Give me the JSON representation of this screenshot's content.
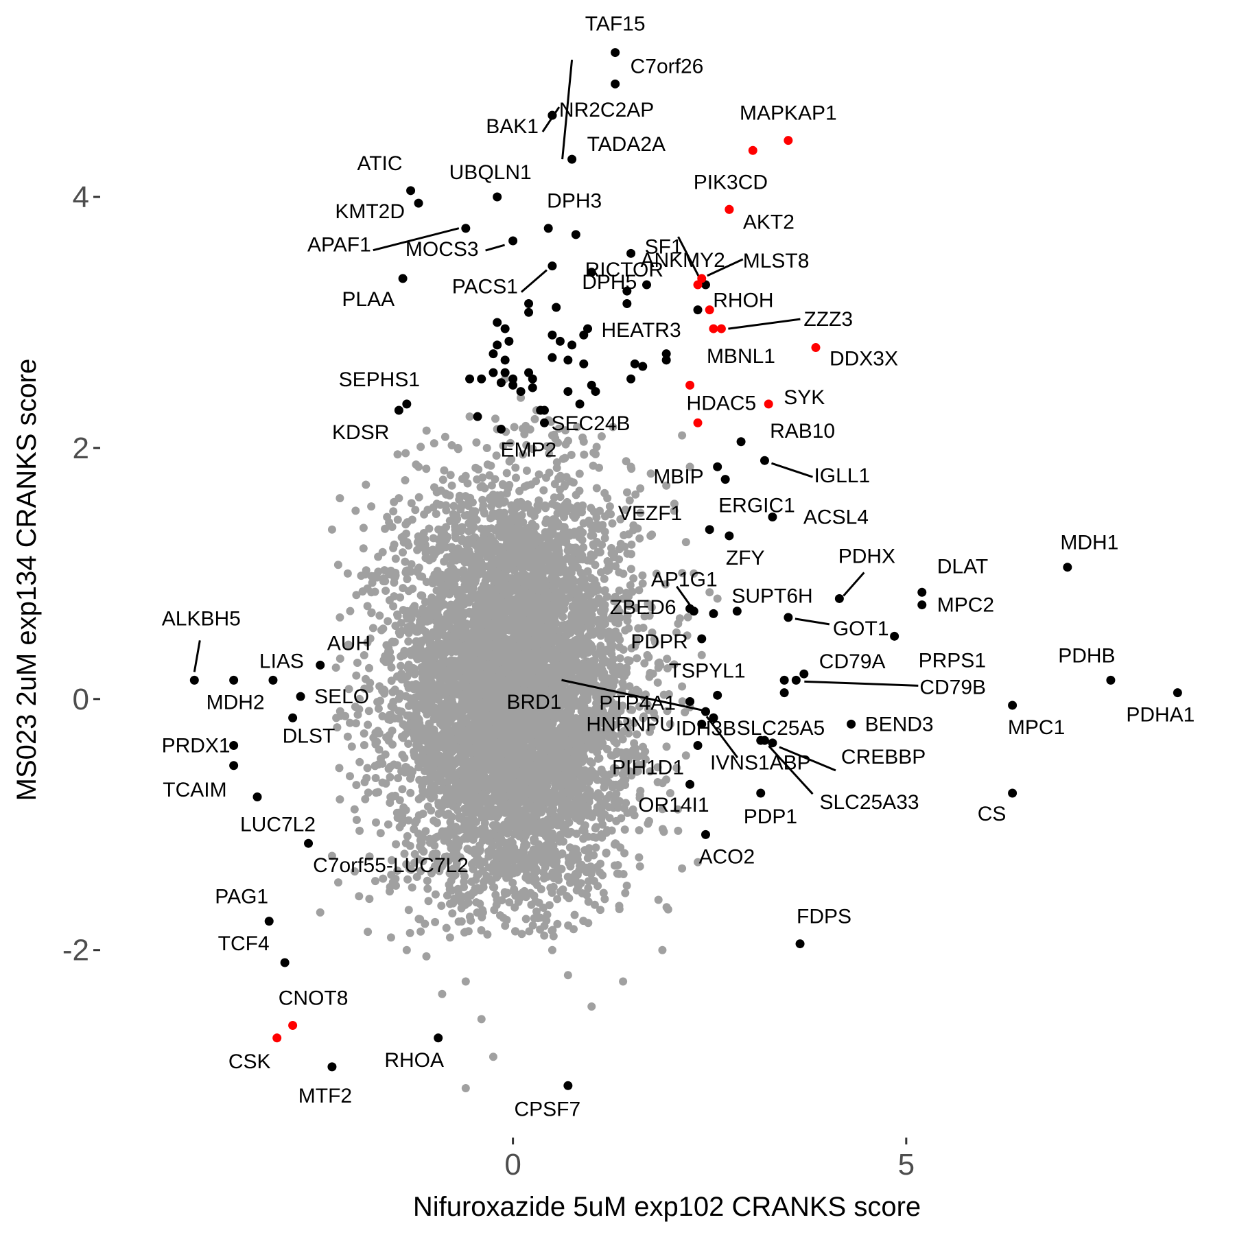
{
  "colors": {
    "background": "#ffffff",
    "highlight": "#ff0000",
    "hit": "#000000",
    "bulk": "#a0a0a0",
    "leader": "#000000"
  },
  "chart_data": {
    "type": "scatter",
    "xlabel": "Nifuroxazide 5uM exp102 CRANKS score",
    "ylabel": "MS023 2uM exp134 CRANKS score",
    "xlim": [
      -5.3,
      8.7
    ],
    "ylim": [
      -3.45,
      5.35
    ],
    "xticks": [
      0,
      5
    ],
    "yticks": [
      -2,
      0,
      2,
      4
    ],
    "grid": false,
    "legend": "none",
    "bulk_series": {
      "name": "",
      "points": [
        [
          2.15,
          2.1
        ],
        [
          2.25,
          1.85
        ],
        [
          1.95,
          1.7
        ],
        [
          2.05,
          1.5
        ],
        [
          2.2,
          1.25
        ],
        [
          2.3,
          1.0
        ],
        [
          2.5,
          0.85
        ],
        [
          2.1,
          0.6
        ],
        [
          2.4,
          0.35
        ],
        [
          2.15,
          0.1
        ],
        [
          2.0,
          -0.2
        ],
        [
          2.2,
          -0.45
        ],
        [
          2.0,
          -0.75
        ],
        [
          2.1,
          -1.05
        ],
        [
          2.15,
          -1.35
        ],
        [
          -2.2,
          1.6
        ],
        [
          -2.0,
          1.5
        ],
        [
          -2.3,
          1.35
        ],
        [
          -1.9,
          1.2
        ],
        [
          -2.1,
          1.0
        ],
        [
          -1.8,
          0.85
        ],
        [
          -2.2,
          0.65
        ],
        [
          -1.85,
          0.45
        ],
        [
          -2.25,
          0.25
        ],
        [
          -1.95,
          0.0
        ],
        [
          -2.1,
          -0.3
        ],
        [
          -1.85,
          -0.55
        ],
        [
          -2.2,
          -0.8
        ],
        [
          -1.95,
          -1.05
        ],
        [
          -2.3,
          -1.25
        ],
        [
          -1.75,
          -1.45
        ],
        [
          -2.45,
          -1.7
        ],
        [
          -0.8,
          -1.9
        ],
        [
          -0.6,
          -2.25
        ],
        [
          -0.4,
          -2.55
        ],
        [
          -0.25,
          -2.85
        ],
        [
          -0.6,
          -3.1
        ],
        [
          1.9,
          -2.0
        ],
        [
          1.4,
          -2.25
        ],
        [
          1.0,
          -2.45
        ],
        [
          -1.1,
          -2.05
        ],
        [
          -0.9,
          -2.35
        ],
        [
          0.7,
          -2.2
        ],
        [
          0.5,
          -2.0
        ],
        [
          1.2,
          1.6
        ],
        [
          1.5,
          1.85
        ],
        [
          0.9,
          2.05
        ],
        [
          0.5,
          2.1
        ],
        [
          -0.2,
          2.15
        ],
        [
          -0.7,
          2.0
        ],
        [
          -1.2,
          1.85
        ],
        [
          -1.45,
          1.6
        ],
        [
          1.75,
          1.3
        ],
        [
          -1.6,
          1.45
        ],
        [
          0.1,
          2.4
        ],
        [
          -0.1,
          2.55
        ],
        [
          0.3,
          2.3
        ],
        [
          -0.55,
          2.25
        ],
        [
          1.05,
          1.95
        ],
        [
          2.6,
          0.8
        ],
        [
          2.35,
          -1.3
        ],
        [
          1.85,
          -1.6
        ],
        [
          -1.55,
          -1.9
        ],
        [
          -1.35,
          -2.0
        ]
      ]
    },
    "hit_series": {
      "name": "",
      "points": [
        {
          "label": "TAF15",
          "x": 1.3,
          "y": 5.15
        },
        {
          "label": "C7orf26",
          "x": 1.3,
          "y": 4.9
        },
        {
          "label": "NR2C2AP",
          "x": 0.5,
          "y": 4.65
        },
        {
          "label": "BAK1",
          "x": 0.5,
          "y": 4.65
        },
        {
          "label": "TADA2A",
          "x": 0.75,
          "y": 4.3
        },
        {
          "label": "ATIC",
          "x": -1.3,
          "y": 4.05
        },
        {
          "label": "KMT2D",
          "x": -1.2,
          "y": 3.95
        },
        {
          "label": "UBQLN1",
          "x": -0.2,
          "y": 4.0
        },
        {
          "label": "DPH3",
          "x": 0.45,
          "y": 3.75
        },
        {
          "label": "",
          "x": 0.8,
          "y": 3.7
        },
        {
          "label": "APAF1",
          "x": -0.6,
          "y": 3.75
        },
        {
          "label": "MOCS3",
          "x": 0.0,
          "y": 3.65
        },
        {
          "label": "SF1",
          "x": 1.5,
          "y": 3.55
        },
        {
          "label": "PLAA",
          "x": -1.4,
          "y": 3.35
        },
        {
          "label": "PACS1",
          "x": 0.5,
          "y": 3.45
        },
        {
          "label": "DPH5",
          "x": 1.0,
          "y": 3.4
        },
        {
          "label": "ANKMY2",
          "x": 2.45,
          "y": 3.3
        },
        {
          "label": "",
          "x": 1.7,
          "y": 3.3
        },
        {
          "label": "",
          "x": 1.45,
          "y": 3.25
        },
        {
          "label": "",
          "x": 1.45,
          "y": 3.15
        },
        {
          "label": "",
          "x": 0.2,
          "y": 3.15
        },
        {
          "label": "",
          "x": 0.2,
          "y": 3.08
        },
        {
          "label": "",
          "x": 0.55,
          "y": 3.12
        },
        {
          "label": "",
          "x": 2.35,
          "y": 3.1
        },
        {
          "label": "HEATR3",
          "x": 0.95,
          "y": 2.95
        },
        {
          "label": "",
          "x": -0.2,
          "y": 3.0
        },
        {
          "label": "",
          "x": -0.1,
          "y": 2.95
        },
        {
          "label": "",
          "x": 0.5,
          "y": 2.9
        },
        {
          "label": "",
          "x": 0.6,
          "y": 2.85
        },
        {
          "label": "",
          "x": 0.75,
          "y": 2.82
        },
        {
          "label": "",
          "x": 0.9,
          "y": 2.9
        },
        {
          "label": "",
          "x": -0.2,
          "y": 2.82
        },
        {
          "label": "",
          "x": -0.05,
          "y": 2.85
        },
        {
          "label": "",
          "x": -0.25,
          "y": 2.75
        },
        {
          "label": "",
          "x": -0.1,
          "y": 2.7
        },
        {
          "label": "",
          "x": 0.5,
          "y": 2.72
        },
        {
          "label": "",
          "x": 0.7,
          "y": 2.7
        },
        {
          "label": "",
          "x": 0.9,
          "y": 2.67
        },
        {
          "label": "",
          "x": 1.95,
          "y": 2.75
        },
        {
          "label": "",
          "x": 1.95,
          "y": 2.7
        },
        {
          "label": "",
          "x": 1.55,
          "y": 2.67
        },
        {
          "label": "",
          "x": 1.65,
          "y": 2.65
        },
        {
          "label": "",
          "x": -0.25,
          "y": 2.6
        },
        {
          "label": "",
          "x": -0.4,
          "y": 2.55
        },
        {
          "label": "",
          "x": 0.0,
          "y": 2.55
        },
        {
          "label": "",
          "x": 0.2,
          "y": 2.6
        },
        {
          "label": "",
          "x": 0.25,
          "y": 2.55
        },
        {
          "label": "",
          "x": -0.55,
          "y": 2.55
        },
        {
          "label": "",
          "x": -0.1,
          "y": 2.6
        },
        {
          "label": "",
          "x": 0.0,
          "y": 2.5
        },
        {
          "label": "",
          "x": 0.1,
          "y": 2.45
        },
        {
          "label": "",
          "x": -0.15,
          "y": 2.52
        },
        {
          "label": "",
          "x": 0.25,
          "y": 2.48
        },
        {
          "label": "",
          "x": 0.7,
          "y": 2.45
        },
        {
          "label": "",
          "x": 1.0,
          "y": 2.5
        },
        {
          "label": "",
          "x": 1.05,
          "y": 2.45
        },
        {
          "label": "",
          "x": 1.5,
          "y": 2.55
        },
        {
          "label": "",
          "x": 0.35,
          "y": 2.3
        },
        {
          "label": "",
          "x": 0.4,
          "y": 2.2
        },
        {
          "label": "",
          "x": 0.85,
          "y": 2.35
        },
        {
          "label": "",
          "x": 0.4,
          "y": 2.3
        },
        {
          "label": "SEPHS1",
          "x": -1.35,
          "y": 2.35
        },
        {
          "label": "KDSR",
          "x": -1.45,
          "y": 2.3
        },
        {
          "label": "SEC24B",
          "x": -0.45,
          "y": 2.25
        },
        {
          "label": "EMP2",
          "x": -0.15,
          "y": 2.15
        },
        {
          "label": "RAB10",
          "x": 2.9,
          "y": 2.05
        },
        {
          "label": "IGLL1",
          "x": 3.2,
          "y": 1.9
        },
        {
          "label": "MBIP",
          "x": 2.6,
          "y": 1.85
        },
        {
          "label": "ERGIC1",
          "x": 2.7,
          "y": 1.75
        },
        {
          "label": "ACSL4",
          "x": 3.3,
          "y": 1.45
        },
        {
          "label": "VEZF1",
          "x": 2.5,
          "y": 1.35
        },
        {
          "label": "ZFY",
          "x": 2.75,
          "y": 1.3
        },
        {
          "label": "MDH1",
          "x": 7.05,
          "y": 1.05
        },
        {
          "label": "PDHX",
          "x": 4.15,
          "y": 0.8
        },
        {
          "label": "DLAT",
          "x": 5.2,
          "y": 0.85
        },
        {
          "label": "MPC2",
          "x": 5.2,
          "y": 0.75
        },
        {
          "label": "AP1G1",
          "x": 2.3,
          "y": 0.7
        },
        {
          "label": "ZBED6",
          "x": 2.25,
          "y": 0.72
        },
        {
          "label": "",
          "x": 2.55,
          "y": 0.68
        },
        {
          "label": "SUPT6H",
          "x": 2.85,
          "y": 0.7
        },
        {
          "label": "GOT1",
          "x": 3.5,
          "y": 0.65
        },
        {
          "label": "PRPS1",
          "x": 4.85,
          "y": 0.5
        },
        {
          "label": "PDPR",
          "x": 2.4,
          "y": 0.48
        },
        {
          "label": "IDH3B",
          "x": 3.45,
          "y": 0.15
        },
        {
          "label": "PDHB",
          "x": 7.6,
          "y": 0.15
        },
        {
          "label": "PDHA1",
          "x": 8.45,
          "y": 0.05
        },
        {
          "label": "CD79A",
          "x": 3.7,
          "y": 0.2
        },
        {
          "label": "CD79B",
          "x": 3.6,
          "y": 0.15
        },
        {
          "label": "TSPYL1",
          "x": 2.6,
          "y": 0.03
        },
        {
          "label": "",
          "x": 3.45,
          "y": 0.05
        },
        {
          "label": "",
          "x": 2.25,
          "y": -0.02
        },
        {
          "label": "BRD1",
          "x": 2.45,
          "y": -0.1
        },
        {
          "label": "PTP4A1",
          "x": 2.55,
          "y": -0.15
        },
        {
          "label": "MPC1",
          "x": 6.35,
          "y": -0.05
        },
        {
          "label": "HNRNPU",
          "x": 2.4,
          "y": -0.2
        },
        {
          "label": "BEND3",
          "x": 4.3,
          "y": -0.2
        },
        {
          "label": "SLC25A5",
          "x": 3.15,
          "y": -0.33
        },
        {
          "label": "CREBBP",
          "x": 3.3,
          "y": -0.35
        },
        {
          "label": "SLC25A33",
          "x": 3.2,
          "y": -0.33
        },
        {
          "label": "PIH1D1",
          "x": 2.35,
          "y": -0.37
        },
        {
          "label": "IVNS1ABP",
          "x": 2.55,
          "y": -0.15
        },
        {
          "label": "OR14I1",
          "x": 2.25,
          "y": -0.68
        },
        {
          "label": "PDP1",
          "x": 3.15,
          "y": -0.75
        },
        {
          "label": "CS",
          "x": 6.35,
          "y": -0.75
        },
        {
          "label": "ACO2",
          "x": 2.45,
          "y": -1.08
        },
        {
          "label": "FDPS",
          "x": 3.65,
          "y": -1.95
        },
        {
          "label": "ALKBH5",
          "x": -4.05,
          "y": 0.15
        },
        {
          "label": "MDH2",
          "x": -3.55,
          "y": 0.15
        },
        {
          "label": "LIAS",
          "x": -3.05,
          "y": 0.15
        },
        {
          "label": "AUH",
          "x": -2.45,
          "y": 0.27
        },
        {
          "label": "SELO",
          "x": -2.7,
          "y": 0.02
        },
        {
          "label": "DLST",
          "x": -2.8,
          "y": -0.15
        },
        {
          "label": "PRDX1",
          "x": -3.55,
          "y": -0.37
        },
        {
          "label": "TCAIM",
          "x": -3.55,
          "y": -0.53
        },
        {
          "label": "LUC7L2",
          "x": -3.25,
          "y": -0.78
        },
        {
          "label": "C7orf55-LUC7L2",
          "x": -2.6,
          "y": -1.15
        },
        {
          "label": "PAG1",
          "x": -3.1,
          "y": -1.77
        },
        {
          "label": "TCF4",
          "x": -2.9,
          "y": -2.1
        },
        {
          "label": "MTF2",
          "x": -2.3,
          "y": -2.93
        },
        {
          "label": "RHOA",
          "x": -0.95,
          "y": -2.7
        },
        {
          "label": "CPSF7",
          "x": 0.7,
          "y": -3.08
        }
      ]
    },
    "highlight_series": {
      "name": "",
      "points": [
        {
          "label": "MAPKAP1",
          "x": 3.5,
          "y": 4.45
        },
        {
          "label": "",
          "x": 3.05,
          "y": 4.37
        },
        {
          "label": "PIK3CD",
          "x": 2.75,
          "y": 3.9
        },
        {
          "label": "AKT2",
          "x": 2.75,
          "y": 3.9
        },
        {
          "label": "RICTOR",
          "x": 2.35,
          "y": 3.3
        },
        {
          "label": "MLST8",
          "x": 2.4,
          "y": 3.35
        },
        {
          "label": "RHOH",
          "x": 2.5,
          "y": 3.1
        },
        {
          "label": "ZZZ3",
          "x": 2.65,
          "y": 2.95
        },
        {
          "label": "MBNL1",
          "x": 2.55,
          "y": 2.95
        },
        {
          "label": "DDX3X",
          "x": 3.85,
          "y": 2.8
        },
        {
          "label": "HDAC5",
          "x": 2.25,
          "y": 2.5
        },
        {
          "label": "SYK",
          "x": 3.25,
          "y": 2.35
        },
        {
          "label": "",
          "x": 2.35,
          "y": 2.2
        },
        {
          "label": "CNOT8",
          "x": -2.8,
          "y": -2.6
        },
        {
          "label": "CSK",
          "x": -3.0,
          "y": -2.7
        }
      ]
    }
  }
}
